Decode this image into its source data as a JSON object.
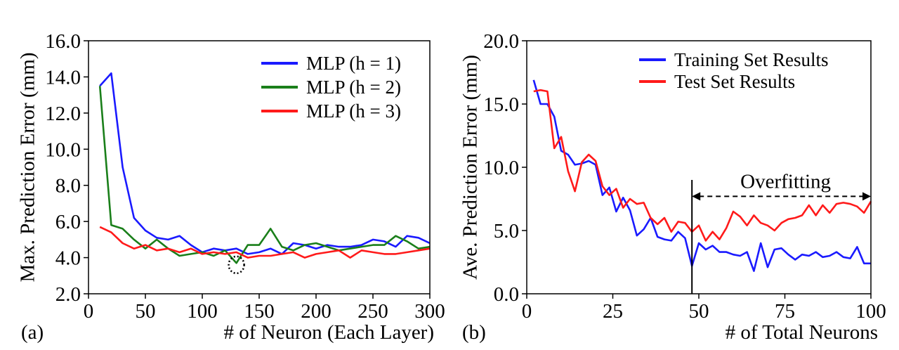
{
  "chart_data": [
    {
      "panel_label": "(a)",
      "type": "line",
      "xlabel": "# of Neuron (Each Layer)",
      "ylabel": "Max. Prediction Error (mm)",
      "xlim": [
        0,
        300
      ],
      "ylim": [
        2.0,
        16.0
      ],
      "xticks": [
        0,
        50,
        100,
        150,
        200,
        250,
        300
      ],
      "yticks": [
        2.0,
        4.0,
        6.0,
        8.0,
        10.0,
        12.0,
        14.0,
        16.0
      ],
      "xtick_labels": [
        "0",
        "50",
        "100",
        "150",
        "200",
        "250",
        "300"
      ],
      "ytick_labels": [
        "2.0",
        "4.0",
        "6.0",
        "8.0",
        "10.0",
        "12.0",
        "14.0",
        "16.0"
      ],
      "legend_position": "top-right",
      "x": [
        10,
        20,
        30,
        40,
        50,
        60,
        70,
        80,
        90,
        100,
        110,
        120,
        130,
        140,
        150,
        160,
        170,
        180,
        190,
        200,
        210,
        220,
        230,
        240,
        250,
        260,
        270,
        280,
        290,
        300
      ],
      "series": [
        {
          "name": "MLP (h = 1)",
          "color": "#1a1aff",
          "values": [
            13.5,
            14.2,
            9.0,
            6.2,
            5.5,
            5.1,
            5.0,
            5.2,
            4.7,
            4.3,
            4.5,
            4.4,
            4.5,
            4.2,
            4.3,
            4.5,
            4.2,
            4.8,
            4.7,
            4.5,
            4.7,
            4.6,
            4.6,
            4.7,
            5.0,
            4.9,
            4.6,
            5.2,
            5.1,
            4.8
          ]
        },
        {
          "name": "MLP (h = 2)",
          "color": "#1a7f1a",
          "values": [
            13.5,
            5.8,
            5.6,
            5.0,
            4.5,
            5.0,
            4.5,
            4.1,
            4.2,
            4.3,
            4.1,
            4.4,
            3.7,
            4.7,
            4.7,
            5.6,
            4.6,
            4.4,
            4.7,
            4.8,
            4.6,
            4.4,
            4.5,
            4.6,
            4.7,
            4.7,
            5.2,
            4.9,
            4.5,
            4.6
          ]
        },
        {
          "name": "MLP (h = 3)",
          "color": "#ff1a1a",
          "values": [
            5.7,
            5.4,
            4.8,
            4.5,
            4.7,
            4.4,
            4.5,
            4.3,
            4.5,
            4.2,
            4.3,
            4.2,
            4.3,
            4.0,
            4.1,
            4.1,
            4.2,
            4.3,
            4.0,
            4.2,
            4.3,
            4.4,
            4.0,
            4.4,
            4.3,
            4.2,
            4.2,
            4.3,
            4.4,
            4.5
          ]
        }
      ],
      "annotations": [
        {
          "type": "dotted-circle",
          "x": 130,
          "y": 3.6
        }
      ]
    },
    {
      "panel_label": "(b)",
      "type": "line",
      "xlabel": "# of Total Neurons",
      "ylabel": "Ave. Prediction Error (mm)",
      "xlim": [
        0,
        100
      ],
      "ylim": [
        0.0,
        20.0
      ],
      "xticks": [
        0,
        25,
        50,
        75,
        100
      ],
      "yticks": [
        0.0,
        5.0,
        10.0,
        15.0,
        20.0
      ],
      "xtick_labels": [
        "0",
        "25",
        "50",
        "75",
        "100"
      ],
      "ytick_labels": [
        "0.0",
        "5.0",
        "10.0",
        "15.0",
        "20.0"
      ],
      "legend_position": "top-right",
      "x": [
        2,
        4,
        6,
        8,
        10,
        12,
        14,
        16,
        18,
        20,
        22,
        24,
        26,
        28,
        30,
        32,
        34,
        36,
        38,
        40,
        42,
        44,
        46,
        48,
        50,
        52,
        54,
        56,
        58,
        60,
        62,
        64,
        66,
        68,
        70,
        72,
        74,
        76,
        78,
        80,
        82,
        84,
        86,
        88,
        90,
        92,
        94,
        96,
        98,
        100
      ],
      "series": [
        {
          "name": "Training Set Results",
          "color": "#1a1aff",
          "values": [
            16.9,
            15.0,
            15.0,
            14.0,
            11.3,
            11.0,
            10.2,
            10.3,
            10.5,
            10.2,
            7.8,
            8.4,
            6.5,
            7.6,
            6.6,
            4.6,
            5.1,
            6.0,
            4.5,
            4.3,
            4.2,
            4.9,
            4.4,
            2.2,
            4.0,
            3.5,
            3.8,
            3.3,
            3.3,
            3.1,
            3.0,
            3.3,
            1.8,
            4.0,
            2.1,
            3.5,
            3.6,
            3.1,
            2.7,
            3.1,
            3.0,
            3.3,
            2.9,
            3.0,
            3.3,
            2.9,
            2.8,
            3.7,
            2.4,
            2.4
          ]
        },
        {
          "name": "Test Set Results",
          "color": "#ff1a1a",
          "values": [
            16.0,
            16.1,
            16.0,
            11.5,
            12.4,
            9.7,
            8.1,
            10.4,
            11.0,
            10.5,
            8.5,
            7.8,
            8.3,
            6.8,
            7.5,
            7.1,
            7.2,
            6.0,
            5.5,
            6.0,
            4.9,
            5.7,
            5.6,
            4.9,
            5.4,
            4.2,
            4.9,
            4.3,
            5.2,
            6.5,
            6.1,
            5.4,
            6.2,
            5.6,
            5.4,
            5.0,
            5.6,
            5.9,
            6.0,
            6.2,
            7.0,
            6.2,
            7.0,
            6.4,
            7.1,
            7.2,
            7.1,
            6.9,
            6.4,
            7.3
          ]
        }
      ],
      "annotations": [
        {
          "type": "vertical-line",
          "x": 48
        },
        {
          "type": "double-arrow",
          "from_x": 48,
          "to_x": 100,
          "y": 7.7,
          "label": "Overfitting"
        }
      ]
    }
  ]
}
